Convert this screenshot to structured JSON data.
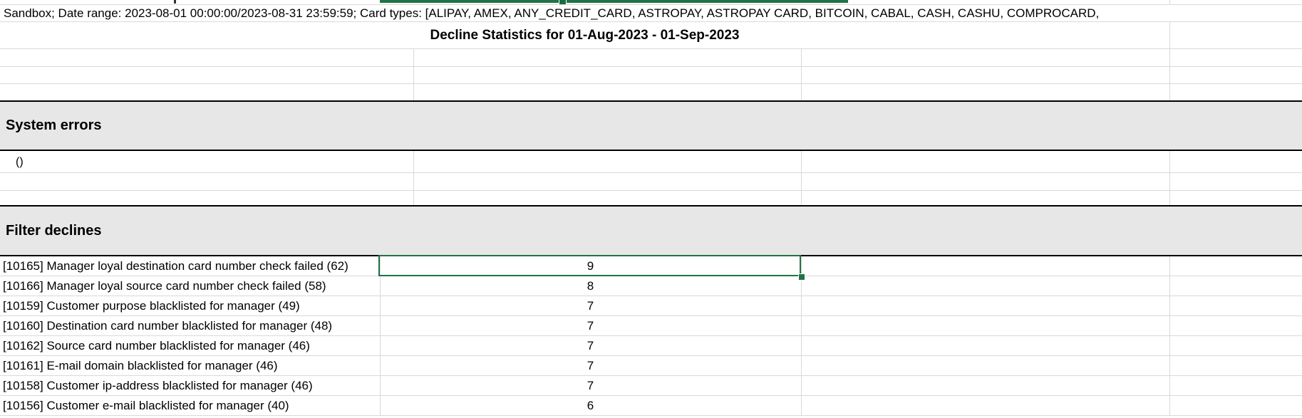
{
  "report": {
    "meta_line": "Sandbox; Date range: 2023-08-01 00:00:00/2023-08-31 23:59:59; Card types: [ALIPAY, AMEX, ANY_CREDIT_CARD, ASTROPAY, ASTROPAY CARD, BITCOIN, CABAL, CASH, CASHU, COMPROCARD,",
    "title": "Decline Statistics for 01-Aug-2023 - 01-Sep-2023"
  },
  "sections": {
    "system_errors": {
      "header": "System errors",
      "rows": [
        {
          "label": "()",
          "value": ""
        }
      ]
    },
    "filter_declines": {
      "header": "Filter declines",
      "rows": [
        {
          "label": "[10165] Manager loyal destination card number check failed (62)",
          "value": "9",
          "selected": true
        },
        {
          "label": "[10166] Manager loyal source card number check failed (58)",
          "value": "8",
          "selected": false
        },
        {
          "label": "[10159] Customer purpose blacklisted for manager (49)",
          "value": "7",
          "selected": false
        },
        {
          "label": "[10160] Destination card number blacklisted for manager (48)",
          "value": "7",
          "selected": false
        },
        {
          "label": "[10162] Source card number blacklisted for manager (46)",
          "value": "7",
          "selected": false
        },
        {
          "label": "[10161] E-mail domain blacklisted for manager (46)",
          "value": "7",
          "selected": false
        },
        {
          "label": "[10158] Customer ip-address blacklisted for manager (46)",
          "value": "7",
          "selected": false
        },
        {
          "label": "[10156] Customer e-mail blacklisted for manager (40)",
          "value": "6",
          "selected": false
        }
      ]
    }
  },
  "colors": {
    "selection_green": "#217346",
    "section_header_bg": "#e7e7e7",
    "grid_line": "#d9d9d9",
    "section_border": "#000000"
  }
}
